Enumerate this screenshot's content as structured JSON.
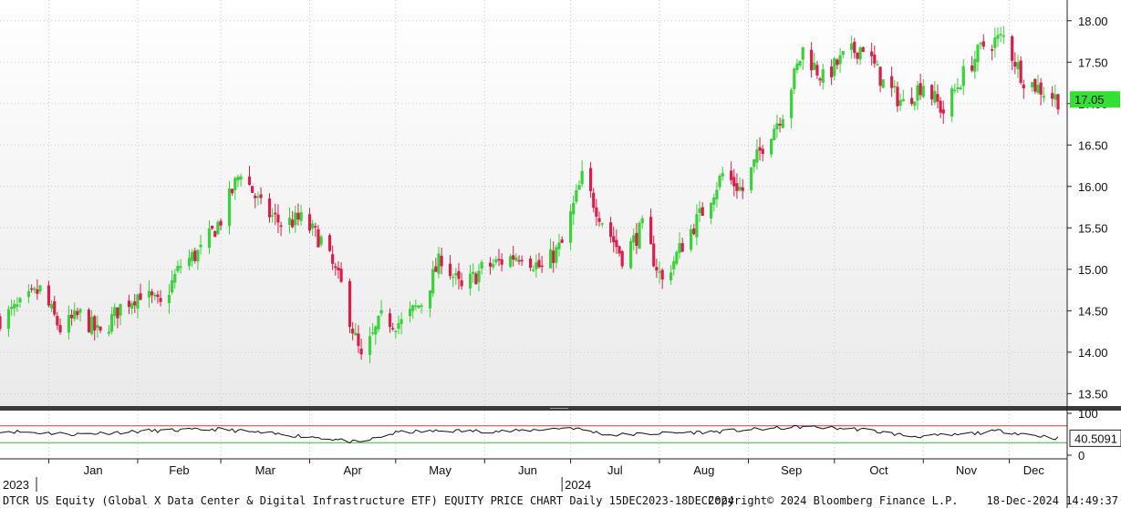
{
  "chart_data": {
    "type": "candlestick",
    "ticker": "DTCR US Equity",
    "price_axis": {
      "ylim": [
        13.35,
        18.25
      ],
      "ticks": [
        13.5,
        14.0,
        14.5,
        15.0,
        15.5,
        16.0,
        16.5,
        17.0,
        17.5,
        18.0
      ],
      "tick_labels": [
        "13.50",
        "14.00",
        "14.50",
        "15.00",
        "15.50",
        "16.00",
        "16.50",
        "17.00",
        "17.50",
        "18.00"
      ]
    },
    "last_price": {
      "value": 17.05,
      "label": "17.05",
      "color": "#35e035"
    },
    "up_color": "#3ad13a",
    "down_color": "#d81e4a",
    "x_axis": {
      "start_date": "2023-12-15",
      "end_date": "2024-12-18",
      "month_labels": [
        "Jan",
        "Feb",
        "Mar",
        "Apr",
        "May",
        "Jun",
        "Jul",
        "Aug",
        "Sep",
        "Oct",
        "Nov",
        "Dec"
      ],
      "year_labels": [
        {
          "label": "2023",
          "date": "2023-12-15"
        },
        {
          "label": "2024",
          "date": "2024-06-28"
        }
      ]
    },
    "close_path": [
      [
        "2023-12-15",
        14.4
      ],
      [
        "2023-12-22",
        14.55
      ],
      [
        "2023-12-29",
        14.75
      ],
      [
        "2024-01-05",
        14.28
      ],
      [
        "2024-01-12",
        14.45
      ],
      [
        "2024-01-19",
        14.2
      ],
      [
        "2024-01-26",
        14.55
      ],
      [
        "2024-02-02",
        14.72
      ],
      [
        "2024-02-09",
        14.55
      ],
      [
        "2024-02-16",
        15.05
      ],
      [
        "2024-02-23",
        15.22
      ],
      [
        "2024-03-01",
        15.6
      ],
      [
        "2024-03-08",
        16.2
      ],
      [
        "2024-03-15",
        15.75
      ],
      [
        "2024-03-22",
        15.55
      ],
      [
        "2024-03-29",
        15.6
      ],
      [
        "2024-04-05",
        15.35
      ],
      [
        "2024-04-12",
        14.8
      ],
      [
        "2024-04-19",
        13.9
      ],
      [
        "2024-04-26",
        14.4
      ],
      [
        "2024-05-03",
        14.35
      ],
      [
        "2024-05-10",
        14.6
      ],
      [
        "2024-05-17",
        15.15
      ],
      [
        "2024-05-24",
        14.75
      ],
      [
        "2024-05-31",
        15.0
      ],
      [
        "2024-06-07",
        15.1
      ],
      [
        "2024-06-14",
        15.2
      ],
      [
        "2024-06-21",
        15.0
      ],
      [
        "2024-06-28",
        15.3
      ],
      [
        "2024-07-05",
        16.1
      ],
      [
        "2024-07-12",
        15.6
      ],
      [
        "2024-07-19",
        15.15
      ],
      [
        "2024-07-26",
        15.5
      ],
      [
        "2024-08-02",
        14.85
      ],
      [
        "2024-08-09",
        15.3
      ],
      [
        "2024-08-16",
        15.7
      ],
      [
        "2024-08-23",
        16.15
      ],
      [
        "2024-08-30",
        15.95
      ],
      [
        "2024-09-06",
        16.5
      ],
      [
        "2024-09-13",
        16.9
      ],
      [
        "2024-09-20",
        17.65
      ],
      [
        "2024-09-27",
        17.3
      ],
      [
        "2024-10-04",
        17.55
      ],
      [
        "2024-10-11",
        17.7
      ],
      [
        "2024-10-18",
        17.25
      ],
      [
        "2024-10-25",
        17.0
      ],
      [
        "2024-11-01",
        17.25
      ],
      [
        "2024-11-08",
        16.9
      ],
      [
        "2024-11-15",
        17.35
      ],
      [
        "2024-11-22",
        17.7
      ],
      [
        "2024-11-29",
        17.8
      ],
      [
        "2024-12-06",
        17.3
      ],
      [
        "2024-12-13",
        17.15
      ],
      [
        "2024-12-18",
        17.05
      ]
    ],
    "rsi": {
      "value": 40.5091,
      "label": "40.5091",
      "overbought": 70,
      "oversold": 30,
      "tick_labels": [
        "100",
        "0"
      ],
      "path": [
        [
          "2023-12-15",
          58
        ],
        [
          "2024-01-10",
          50
        ],
        [
          "2024-02-05",
          58
        ],
        [
          "2024-03-01",
          62
        ],
        [
          "2024-03-12",
          55
        ],
        [
          "2024-04-05",
          42
        ],
        [
          "2024-04-18",
          30
        ],
        [
          "2024-05-02",
          55
        ],
        [
          "2024-05-20",
          58
        ],
        [
          "2024-06-10",
          57
        ],
        [
          "2024-07-01",
          66
        ],
        [
          "2024-07-15",
          48
        ],
        [
          "2024-08-01",
          52
        ],
        [
          "2024-08-20",
          56
        ],
        [
          "2024-09-20",
          68
        ],
        [
          "2024-10-10",
          62
        ],
        [
          "2024-10-28",
          45
        ],
        [
          "2024-11-12",
          48
        ],
        [
          "2024-11-28",
          58
        ],
        [
          "2024-12-18",
          40.5
        ]
      ]
    }
  },
  "footer": {
    "title": "DTCR US Equity (Global X Data Center & Digital Infrastructure ETF) EQUITY PRICE CHART  Daily 15DEC2023-18DEC2024",
    "copyright": "Copyright© 2024 Bloomberg Finance L.P.",
    "timestamp": "18-Dec-2024 14:49:37"
  }
}
